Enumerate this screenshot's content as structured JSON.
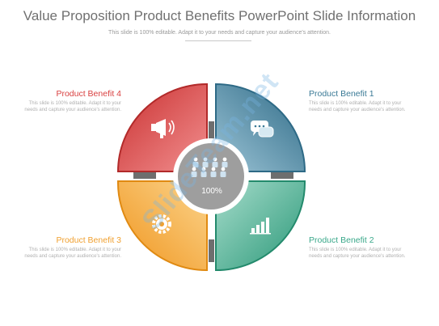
{
  "header": {
    "title": "Value Proposition Product Benefits PowerPoint Slide Information",
    "subtitle": "This slide is 100% editable.  Adapt it to your needs and capture your audience's attention."
  },
  "benefits": [
    {
      "title": "Product Benefit 4",
      "body": "This slide is 100% editable. Adapt it to your needs and capture your audience's attention.",
      "color": "#d94040",
      "icon": "megaphone-icon"
    },
    {
      "title": "Product Benefit 1",
      "body": "This slide is 100% editable. Adapt it to your needs and capture your audience's attention.",
      "color": "#3b7a96",
      "icon": "speech-bubbles-icon"
    },
    {
      "title": "Product Benefit 3",
      "body": "This slide is 100% editable. Adapt it to your needs and capture your audience's attention.",
      "color": "#f0a030",
      "icon": "gear-icon"
    },
    {
      "title": "Product Benefit 2",
      "body": "This slide is 100% editable. Adapt it to your needs and capture your audience's attention.",
      "color": "#3aa88a",
      "icon": "bar-chart-icon"
    }
  ],
  "center": {
    "value": "100%",
    "color": "#9e9e9e",
    "icon": "people-group-icon"
  },
  "watermark": "SlideTeam.net"
}
